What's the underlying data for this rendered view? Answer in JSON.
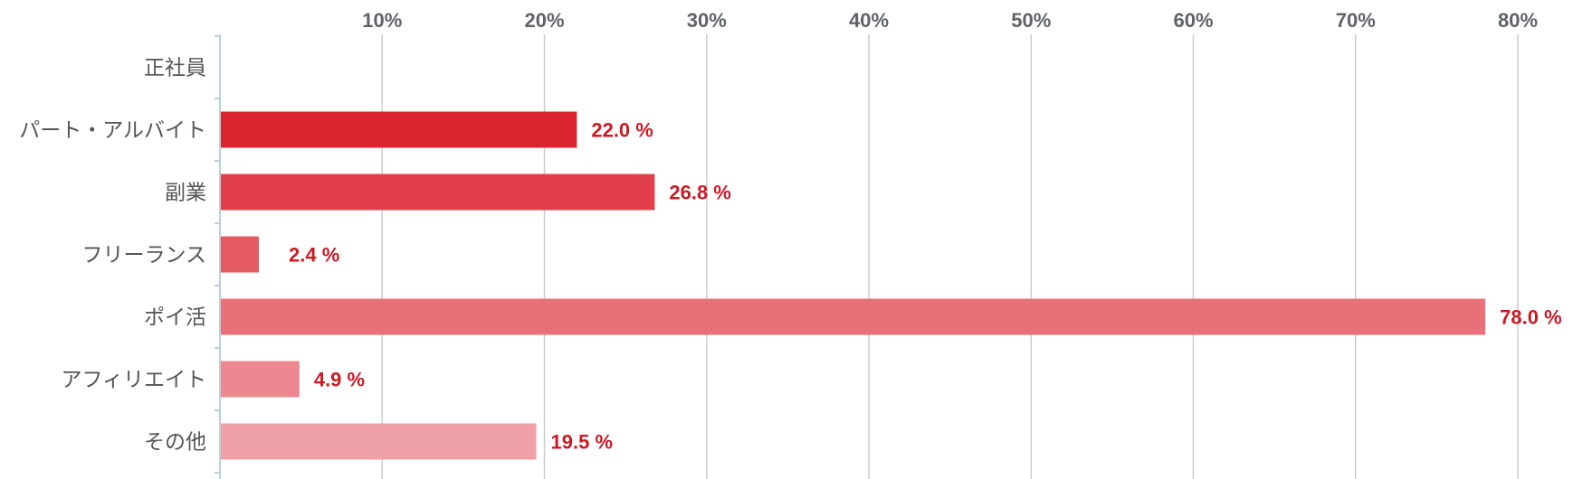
{
  "chart_data": {
    "type": "bar",
    "orientation": "horizontal",
    "categories": [
      "正社員",
      "パート・アルバイト",
      "副業",
      "フリーランス",
      "ポイ活",
      "アフィリエイト",
      "その他"
    ],
    "values": [
      0,
      22.0,
      26.8,
      2.4,
      78.0,
      4.9,
      19.5
    ],
    "value_labels": [
      "",
      "22.0 %",
      "26.8 %",
      "2.4 %",
      "78.0 %",
      "4.9 %",
      "19.5 %"
    ],
    "x_ticks": [
      "10%",
      "20%",
      "30%",
      "40%",
      "50%",
      "60%",
      "70%",
      "80%"
    ],
    "xlim": [
      0,
      80
    ],
    "grid": true,
    "bar_colors": [
      "#dc2430",
      "#dc2430",
      "#e1404b",
      "#e35a63",
      "#e87078",
      "#ec888f",
      "#f0a1a7"
    ],
    "value_label_color": "#cc1a24"
  }
}
